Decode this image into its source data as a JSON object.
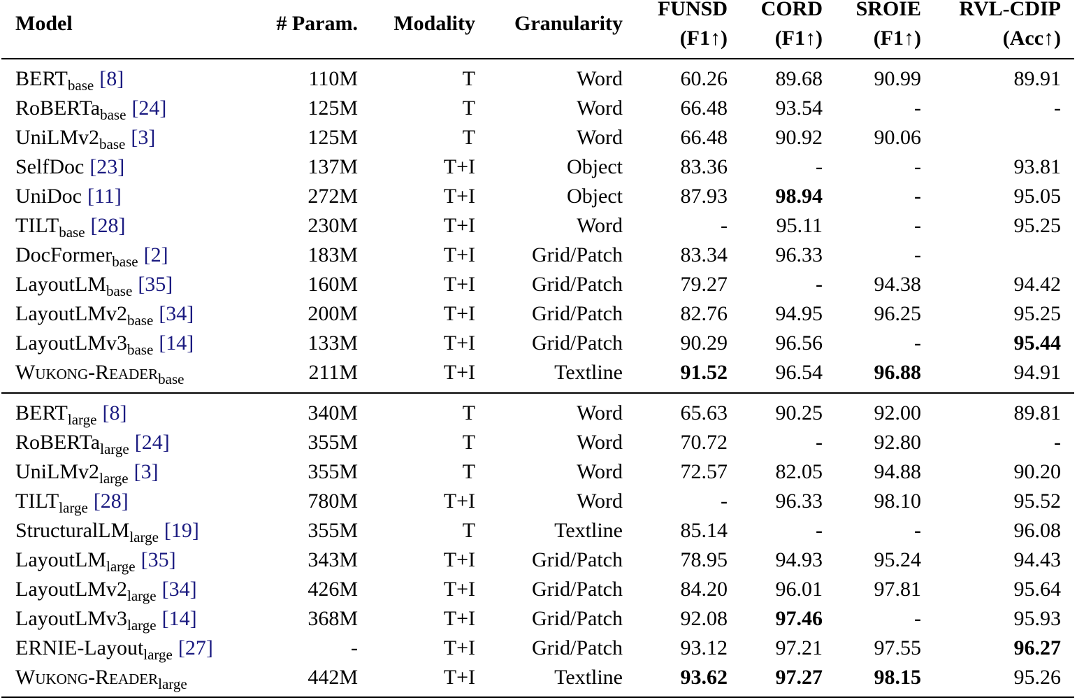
{
  "table": {
    "header": [
      [
        "Model"
      ],
      [
        "# Param."
      ],
      [
        "Modality"
      ],
      [
        "Granularity"
      ],
      [
        "FUNSD",
        "(F1↑)"
      ],
      [
        "CORD",
        "(F1↑)"
      ],
      [
        "SROIE",
        "(F1↑)"
      ],
      [
        "RVL-CDIP",
        "(Acc↑)"
      ]
    ],
    "groups": [
      [
        {
          "model": {
            "name": "BERT",
            "sub": "base",
            "ref": "[8]"
          },
          "cells": [
            "110M",
            "T",
            "Word",
            "60.26",
            "89.68",
            "90.99",
            "89.91"
          ]
        },
        {
          "model": {
            "name": "RoBERTa",
            "sub": "base",
            "ref": "[24]"
          },
          "cells": [
            "125M",
            "T",
            "Word",
            "66.48",
            "93.54",
            "-",
            "-"
          ]
        },
        {
          "model": {
            "name": "UniLMv2",
            "sub": "base",
            "ref": "[3]"
          },
          "cells": [
            "125M",
            "T",
            "Word",
            "66.48",
            "90.92",
            "90.06",
            null
          ]
        },
        {
          "model": {
            "name": "SelfDoc",
            "ref": "[23]"
          },
          "cells": [
            "137M",
            "T+I",
            "Object",
            "83.36",
            "-",
            "-",
            "93.81"
          ]
        },
        {
          "model": {
            "name": "UniDoc",
            "ref": "[11]"
          },
          "cells": [
            "272M",
            "T+I",
            "Object",
            "87.93",
            {
              "text": "98.94",
              "bold": true
            },
            "-",
            "95.05"
          ]
        },
        {
          "model": {
            "name": "TILT",
            "sub": "base",
            "ref": "[28]"
          },
          "cells": [
            "230M",
            "T+I",
            "Word",
            "-",
            "95.11",
            "-",
            "95.25"
          ]
        },
        {
          "model": {
            "name": "DocFormer",
            "sub": "base",
            "ref": "[2]"
          },
          "cells": [
            "183M",
            "T+I",
            "Grid/Patch",
            "83.34",
            "96.33",
            "-",
            null
          ]
        },
        {
          "model": {
            "name": "LayoutLM",
            "sub": "base",
            "ref": "[35]"
          },
          "cells": [
            "160M",
            "T+I",
            "Grid/Patch",
            "79.27",
            "-",
            "94.38",
            "94.42"
          ]
        },
        {
          "model": {
            "name": "LayoutLMv2",
            "sub": "base",
            "ref": "[34]"
          },
          "cells": [
            "200M",
            "T+I",
            "Grid/Patch",
            "82.76",
            "94.95",
            "96.25",
            "95.25"
          ]
        },
        {
          "model": {
            "name": "LayoutLMv3",
            "sub": "base",
            "ref": "[14]"
          },
          "cells": [
            "133M",
            "T+I",
            "Grid/Patch",
            "90.29",
            "96.56",
            "-",
            {
              "text": "95.44",
              "bold": true
            }
          ]
        },
        {
          "model": {
            "name": "Wukong-Reader",
            "sub": "base",
            "smallcaps": true
          },
          "cells": [
            "211M",
            "T+I",
            "Textline",
            {
              "text": "91.52",
              "bold": true
            },
            "96.54",
            {
              "text": "96.88",
              "bold": true
            },
            "94.91"
          ]
        }
      ],
      [
        {
          "model": {
            "name": "BERT",
            "sub": "large",
            "ref": "[8]"
          },
          "cells": [
            "340M",
            "T",
            "Word",
            "65.63",
            "90.25",
            "92.00",
            "89.81"
          ]
        },
        {
          "model": {
            "name": "RoBERTa",
            "sub": "large",
            "ref": "[24]"
          },
          "cells": [
            "355M",
            "T",
            "Word",
            "70.72",
            "-",
            "92.80",
            "-"
          ]
        },
        {
          "model": {
            "name": "UniLMv2",
            "sub": "large",
            "ref": "[3]"
          },
          "cells": [
            "355M",
            "T",
            "Word",
            "72.57",
            "82.05",
            "94.88",
            "90.20"
          ]
        },
        {
          "model": {
            "name": "TILT",
            "sub": "large",
            "ref": "[28]"
          },
          "cells": [
            "780M",
            "T+I",
            "Word",
            "-",
            "96.33",
            "98.10",
            "95.52"
          ]
        },
        {
          "model": {
            "name": "StructuralLM",
            "sub": "large",
            "ref": "[19]"
          },
          "cells": [
            "355M",
            "T",
            "Textline",
            "85.14",
            "-",
            "-",
            "96.08"
          ]
        },
        {
          "model": {
            "name": "LayoutLM",
            "sub": "large",
            "ref": "[35]"
          },
          "cells": [
            "343M",
            "T+I",
            "Grid/Patch",
            "78.95",
            "94.93",
            "95.24",
            "94.43"
          ]
        },
        {
          "model": {
            "name": "LayoutLMv2",
            "sub": "large",
            "ref": "[34]"
          },
          "cells": [
            "426M",
            "T+I",
            "Grid/Patch",
            "84.20",
            "96.01",
            "97.81",
            "95.64"
          ]
        },
        {
          "model": {
            "name": "LayoutLMv3",
            "sub": "large",
            "ref": "[14]"
          },
          "cells": [
            "368M",
            "T+I",
            "Grid/Patch",
            "92.08",
            {
              "text": "97.46",
              "bold": true
            },
            "-",
            "95.93"
          ]
        },
        {
          "model": {
            "name": "ERNIE-Layout",
            "sub": "large",
            "ref": "[27]"
          },
          "cells": [
            "-",
            "T+I",
            "Grid/Patch",
            "93.12",
            "97.21",
            "97.55",
            {
              "text": "96.27",
              "bold": true
            }
          ]
        },
        {
          "model": {
            "name": "Wukong-Reader",
            "sub": "large",
            "smallcaps": true
          },
          "cells": [
            "442M",
            "T+I",
            "Textline",
            {
              "text": "93.62",
              "bold": true
            },
            {
              "text": "97.27",
              "bold": true
            },
            {
              "text": "98.15",
              "bold": true
            },
            "95.26"
          ]
        }
      ]
    ]
  }
}
